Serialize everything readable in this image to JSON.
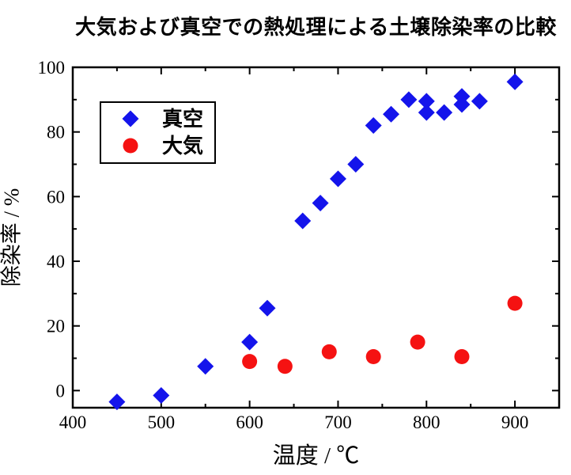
{
  "title": "大気および真空での熱処理による土壌除染率の比較",
  "chart_data": {
    "type": "scatter",
    "title": "大気および真空での熱処理による土壌除染率の比較",
    "xlabel": "温度 / ℃",
    "ylabel": "除染率  / %",
    "xlim": [
      400,
      950
    ],
    "ylim": [
      -5.3,
      100
    ],
    "x_major_ticks": [
      400,
      500,
      600,
      700,
      800,
      900
    ],
    "x_minor_ticks": [
      450,
      550,
      650,
      750,
      850,
      950
    ],
    "y_major_ticks": [
      0,
      20,
      40,
      60,
      80,
      100
    ],
    "y_minor_ticks": [
      10,
      30,
      50,
      70,
      90
    ],
    "grid": false,
    "legend_position": "upper-left-inside",
    "axis_color": "#000000",
    "series": [
      {
        "name": "真空",
        "marker": "diamond",
        "color": "#1414eb",
        "points": [
          [
            450,
            -3.5
          ],
          [
            500,
            -1.5
          ],
          [
            550,
            7.5
          ],
          [
            600,
            15
          ],
          [
            620,
            25.5
          ],
          [
            660,
            52.5
          ],
          [
            680,
            58
          ],
          [
            700,
            65.5
          ],
          [
            720,
            70
          ],
          [
            740,
            82
          ],
          [
            760,
            85.5
          ],
          [
            780,
            90
          ],
          [
            800,
            86
          ],
          [
            800,
            89.5
          ],
          [
            820,
            86
          ],
          [
            840,
            88.5
          ],
          [
            840,
            91
          ],
          [
            860,
            89.5
          ],
          [
            900,
            95.5
          ]
        ]
      },
      {
        "name": "大気",
        "marker": "circle",
        "color": "#f51212",
        "points": [
          [
            600,
            9
          ],
          [
            640,
            7.5
          ],
          [
            690,
            12
          ],
          [
            740,
            10.5
          ],
          [
            790,
            15
          ],
          [
            840,
            10.5
          ],
          [
            900,
            27
          ]
        ]
      }
    ]
  }
}
